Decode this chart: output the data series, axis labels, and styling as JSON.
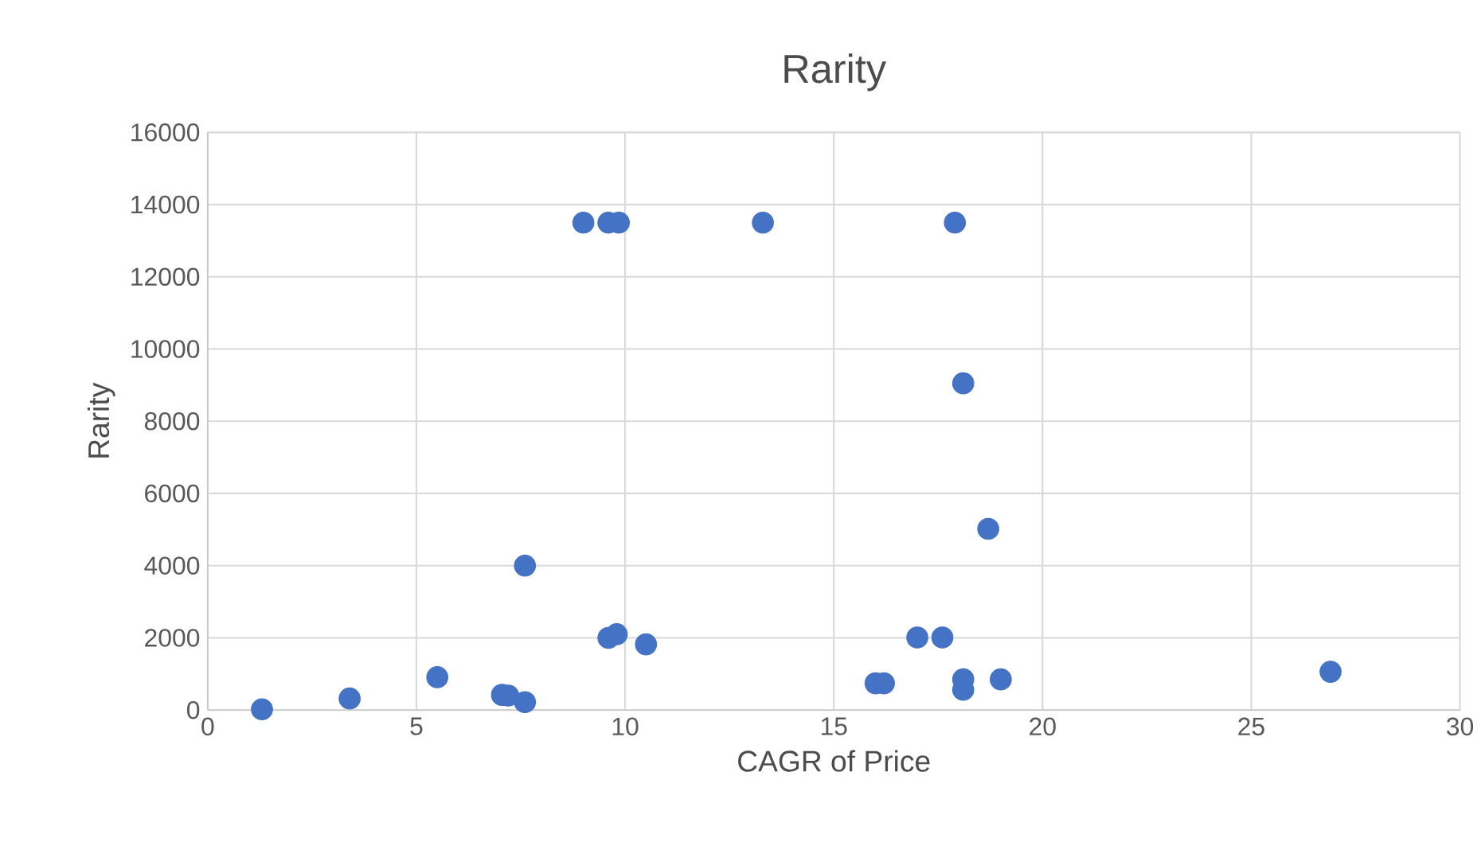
{
  "chart_data": {
    "type": "scatter",
    "title": "Rarity",
    "xlabel": "CAGR of Price",
    "ylabel": "Rarity",
    "x": [
      1.3,
      3.4,
      5.5,
      7.05,
      7.2,
      7.6,
      7.6,
      9.0,
      9.6,
      9.85,
      9.6,
      9.8,
      10.5,
      13.3,
      16.0,
      16.2,
      17.0,
      17.6,
      17.9,
      18.1,
      18.1,
      18.1,
      18.7,
      19.0,
      26.9
    ],
    "values": [
      20,
      320,
      910,
      420,
      400,
      220,
      4000,
      13500,
      13500,
      13500,
      2000,
      2100,
      1820,
      13500,
      740,
      740,
      2010,
      2010,
      13500,
      9050,
      850,
      560,
      5020,
      850,
      1060
    ],
    "color": "#4472c4",
    "grid": true,
    "xlim": [
      0,
      30
    ],
    "xticks": [
      0,
      5,
      10,
      15,
      20,
      25,
      30
    ],
    "ylim": [
      0,
      16000
    ],
    "yticks": [
      0,
      2000,
      4000,
      6000,
      8000,
      10000,
      12000,
      14000,
      16000
    ]
  }
}
